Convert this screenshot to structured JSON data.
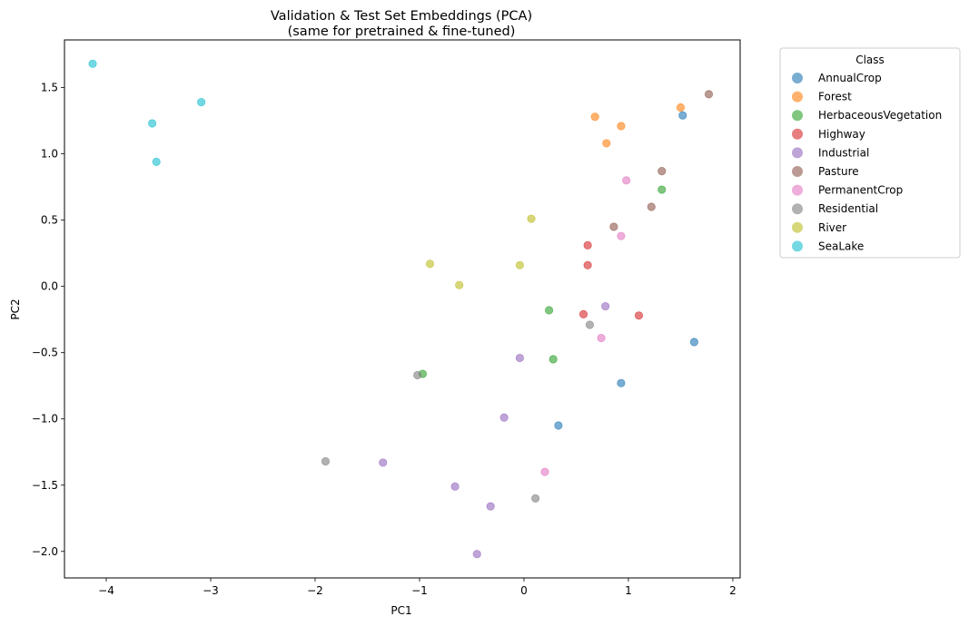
{
  "chart_data": {
    "type": "scatter",
    "title_lines": [
      "Validation & Test Set Embeddings (PCA)",
      "(same for pretrained & fine-tuned)"
    ],
    "xlabel": "PC1",
    "ylabel": "PC2",
    "xlim": [
      -4.4,
      2.07
    ],
    "ylim": [
      -2.2,
      1.86
    ],
    "xticks": [
      -4,
      -3,
      -2,
      -1,
      0,
      1,
      2
    ],
    "yticks": [
      -2.0,
      -1.5,
      -1.0,
      -0.5,
      0.0,
      0.5,
      1.0,
      1.5
    ],
    "xtick_labels": [
      "−4",
      "−3",
      "−2",
      "−1",
      "0",
      "1",
      "2"
    ],
    "ytick_labels": [
      "−2.0",
      "−1.5",
      "−1.0",
      "−0.5",
      "0.0",
      "0.5",
      "1.0",
      "1.5"
    ],
    "grid": false,
    "legend": {
      "title": "Class",
      "placement": "outside-right"
    },
    "series": [
      {
        "name": "AnnualCrop",
        "color": "#1f77b4",
        "points": [
          [
            1.52,
            1.29
          ],
          [
            1.63,
            -0.42
          ],
          [
            0.93,
            -0.73
          ],
          [
            0.33,
            -1.05
          ]
        ]
      },
      {
        "name": "Forest",
        "color": "#ff7f0e",
        "points": [
          [
            1.5,
            1.35
          ],
          [
            0.68,
            1.28
          ],
          [
            0.93,
            1.21
          ],
          [
            0.79,
            1.08
          ]
        ]
      },
      {
        "name": "HerbaceousVegetation",
        "color": "#2ca02c",
        "points": [
          [
            1.32,
            0.73
          ],
          [
            0.24,
            -0.18
          ],
          [
            0.28,
            -0.55
          ],
          [
            -0.97,
            -0.66
          ]
        ]
      },
      {
        "name": "Highway",
        "color": "#d62728",
        "points": [
          [
            0.61,
            0.31
          ],
          [
            0.61,
            0.16
          ],
          [
            0.57,
            -0.21
          ],
          [
            1.1,
            -0.22
          ]
        ]
      },
      {
        "name": "Industrial",
        "color": "#9467bd",
        "points": [
          [
            0.78,
            -0.15
          ],
          [
            -0.04,
            -0.54
          ],
          [
            -0.19,
            -0.99
          ],
          [
            -1.35,
            -1.33
          ],
          [
            -0.66,
            -1.51
          ],
          [
            -0.32,
            -1.66
          ],
          [
            -0.45,
            -2.02
          ]
        ]
      },
      {
        "name": "Pasture",
        "color": "#8c564b",
        "points": [
          [
            1.77,
            1.45
          ],
          [
            1.32,
            0.87
          ],
          [
            1.22,
            0.6
          ],
          [
            0.86,
            0.45
          ]
        ]
      },
      {
        "name": "PermanentCrop",
        "color": "#e377c2",
        "points": [
          [
            0.98,
            0.8
          ],
          [
            0.93,
            0.38
          ],
          [
            0.74,
            -0.39
          ],
          [
            0.2,
            -1.4
          ]
        ]
      },
      {
        "name": "Residential",
        "color": "#7f7f7f",
        "points": [
          [
            0.63,
            -0.29
          ],
          [
            -1.02,
            -0.67
          ],
          [
            -1.9,
            -1.32
          ],
          [
            0.11,
            -1.6
          ]
        ]
      },
      {
        "name": "River",
        "color": "#bcbd22",
        "points": [
          [
            0.07,
            0.51
          ],
          [
            -0.9,
            0.17
          ],
          [
            -0.04,
            0.16
          ],
          [
            -0.62,
            0.01
          ]
        ]
      },
      {
        "name": "SeaLake",
        "color": "#17becf",
        "points": [
          [
            -4.13,
            1.68
          ],
          [
            -3.09,
            1.39
          ],
          [
            -3.56,
            1.23
          ],
          [
            -3.52,
            0.94
          ]
        ]
      }
    ]
  }
}
